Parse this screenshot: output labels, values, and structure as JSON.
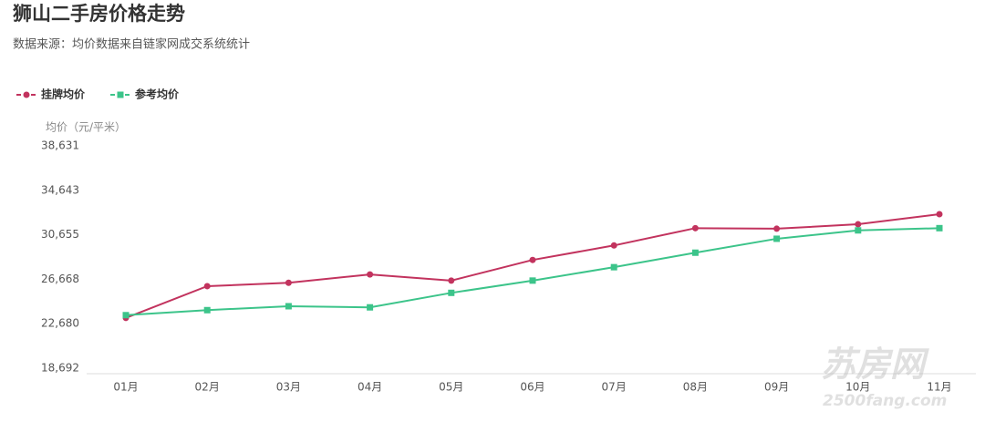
{
  "chart_data": {
    "type": "line",
    "title": "狮山二手房价格走势",
    "subtitle": "数据来源：均价数据来自链家网成交系统统计",
    "y_label": "均价（元/平米）",
    "categories": [
      "01月",
      "02月",
      "03月",
      "04月",
      "05月",
      "06月",
      "07月",
      "08月",
      "09月",
      "10月",
      "11月"
    ],
    "series": [
      {
        "name": "挂牌均价",
        "color": "#c2335e",
        "marker": "circle",
        "values": [
          23200,
          26050,
          26350,
          27100,
          26550,
          28400,
          29700,
          31250,
          31200,
          31600,
          32500
        ]
      },
      {
        "name": "参考均价",
        "color": "#3cc48a",
        "marker": "square",
        "values": [
          23450,
          23900,
          24250,
          24150,
          25450,
          26550,
          27750,
          29050,
          30300,
          31050,
          31250
        ]
      }
    ],
    "ylim": [
      18692,
      38631
    ],
    "yticks": [
      {
        "value": 18692,
        "label": "18,692"
      },
      {
        "value": 22680,
        "label": "22,680"
      },
      {
        "value": 26668,
        "label": "26,668"
      },
      {
        "value": 30655,
        "label": "30,655"
      },
      {
        "value": 34643,
        "label": "34,643"
      },
      {
        "value": 38631,
        "label": "38,631"
      }
    ],
    "grid": false,
    "legend": "top-left",
    "watermark": [
      "苏房网",
      "2500fang.com"
    ]
  }
}
